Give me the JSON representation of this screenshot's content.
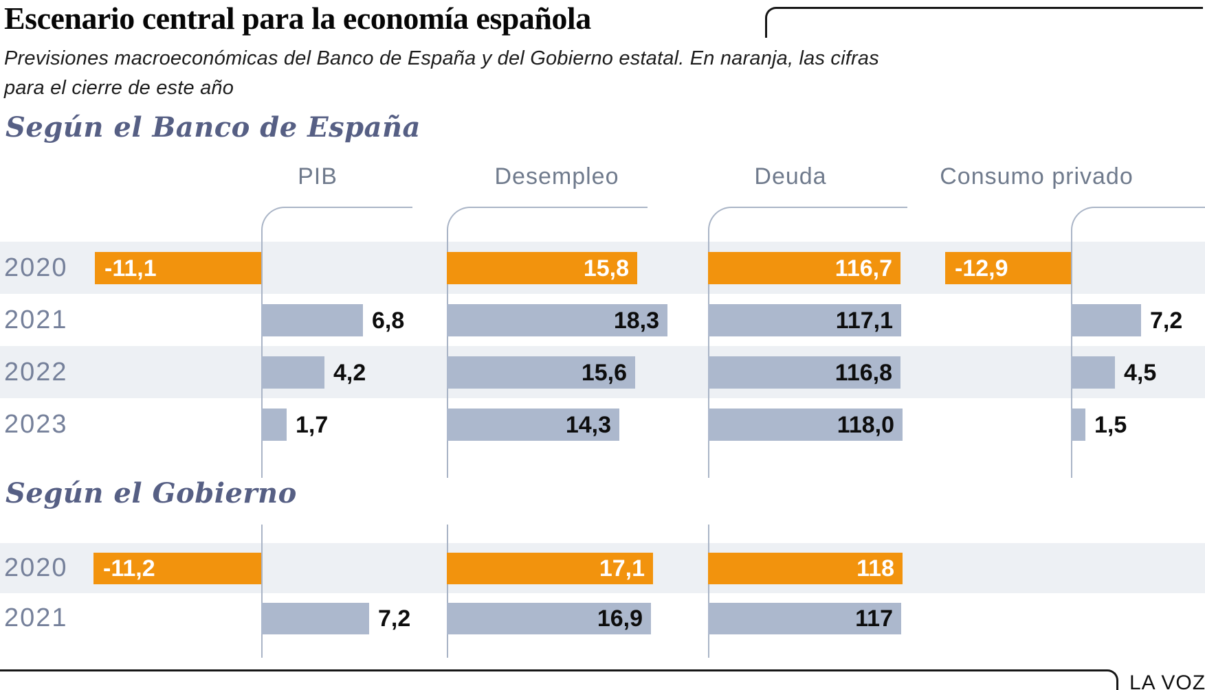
{
  "chart_data": {
    "type": "bar",
    "orientation": "horizontal",
    "title": "Escenario central para la economía española",
    "subtitle_lines": [
      "Previsiones macroeconómicas del Banco de España y del Gobierno estatal. En naranja, las cifras",
      "para el cierre de este año"
    ],
    "credit": "LA VOZ",
    "highlight_year": "2020",
    "colors": {
      "highlight": "#f2930d",
      "bar": "#acb8cd",
      "stripe": "#edf0f4",
      "axis": "#a9b4c6",
      "section_title": "#565f84",
      "year_label": "#75809a"
    },
    "sections": [
      {
        "title": "Según el Banco de España",
        "years": [
          "2020",
          "2021",
          "2022",
          "2023"
        ],
        "columns": [
          {
            "label": "PIB",
            "values": [
              -11.1,
              6.8,
              4.2,
              1.7
            ]
          },
          {
            "label": "Desempleo",
            "values": [
              15.8,
              18.3,
              15.6,
              14.3
            ]
          },
          {
            "label": "Deuda",
            "values": [
              116.7,
              117.1,
              116.8,
              118.0
            ],
            "display": [
              "116,7",
              "117,1",
              "116,8",
              "118,0"
            ]
          },
          {
            "label": "Consumo privado",
            "values": [
              -12.9,
              7.2,
              4.5,
              1.5
            ]
          }
        ]
      },
      {
        "title": "Según el Gobierno",
        "years": [
          "2020",
          "2021"
        ],
        "columns": [
          {
            "label": "PIB",
            "values": [
              -11.2,
              7.2
            ]
          },
          {
            "label": "Desempleo",
            "values": [
              17.1,
              16.9
            ]
          },
          {
            "label": "Deuda",
            "values": [
              118,
              117
            ],
            "display": [
              "118",
              "117"
            ]
          }
        ]
      }
    ]
  }
}
